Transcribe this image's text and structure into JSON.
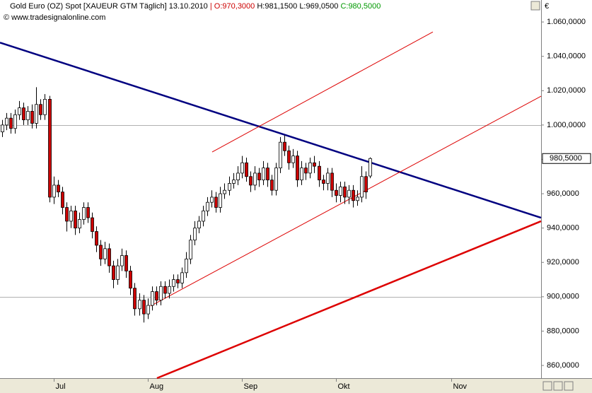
{
  "chart_data": {
    "type": "candlestick",
    "header": {
      "title": "Gold Euro (OZ) Spot [XAUEUR GTM  Täglich] 13.10.2010",
      "separator": "|",
      "open": "O:970,3000",
      "high": "H:981,1500",
      "low": "L:969,0500",
      "close": "C:980,5000"
    },
    "source": "© www.tradesignalonline.com",
    "currency": "€",
    "last_price_label": "980,5000",
    "up_color": "#ffffff",
    "down_color": "#cc0000",
    "open": [
      996,
      1000,
      1004,
      998,
      1006,
      1010,
      1003,
      1008,
      1001,
      1012,
      1006,
      1015,
      958,
      965,
      961,
      952,
      944,
      950,
      940,
      945,
      952,
      946,
      938,
      930,
      922,
      928,
      918,
      910,
      918,
      924,
      915,
      905,
      893,
      898,
      890,
      895,
      903,
      898,
      906,
      902,
      906,
      910,
      908,
      914,
      922,
      933,
      940,
      944,
      950,
      955,
      958,
      952,
      960,
      962,
      966,
      968,
      972,
      978,
      970,
      965,
      972,
      968,
      975,
      968,
      962,
      975,
      990,
      985,
      978,
      982,
      968,
      975,
      972,
      978,
      976,
      968,
      966,
      972,
      962,
      959,
      964,
      958,
      962,
      956,
      958,
      970,
      970.3
    ],
    "high": [
      1003,
      1007,
      1007,
      1009,
      1014,
      1013,
      1011,
      1012,
      1022,
      1015,
      1018,
      1017,
      970,
      968,
      964,
      955,
      953,
      953,
      949,
      955,
      955,
      949,
      941,
      933,
      932,
      931,
      921,
      922,
      928,
      927,
      918,
      908,
      902,
      901,
      899,
      906,
      906,
      909,
      909,
      910,
      913,
      913,
      917,
      926,
      936,
      944,
      947,
      953,
      958,
      962,
      961,
      964,
      966,
      970,
      972,
      976,
      982,
      981,
      973,
      976,
      975,
      979,
      978,
      971,
      978,
      993,
      994,
      988,
      986,
      985,
      979,
      978,
      981,
      982,
      979,
      971,
      975,
      975,
      966,
      967,
      967,
      965,
      965,
      962,
      976,
      973,
      981.15
    ],
    "low": [
      993,
      997,
      995,
      995,
      1003,
      1000,
      1000,
      998,
      998,
      1003,
      1003,
      955,
      954,
      958,
      948,
      938,
      940,
      936,
      937,
      942,
      943,
      934,
      926,
      918,
      919,
      914,
      905,
      907,
      915,
      911,
      901,
      889,
      889,
      885,
      887,
      892,
      895,
      895,
      899,
      899,
      903,
      905,
      905,
      911,
      919,
      930,
      937,
      941,
      947,
      952,
      949,
      949,
      957,
      959,
      963,
      965,
      969,
      967,
      961,
      962,
      964,
      965,
      964,
      959,
      959,
      972,
      982,
      974,
      975,
      964,
      965,
      968,
      969,
      972,
      964,
      962,
      962,
      958,
      955,
      955,
      954,
      954,
      952,
      953,
      955,
      957,
      969.05
    ],
    "close": [
      1000,
      1004,
      998,
      1006,
      1010,
      1003,
      1008,
      1001,
      1012,
      1006,
      1015,
      958,
      965,
      961,
      952,
      944,
      950,
      940,
      945,
      952,
      946,
      938,
      930,
      922,
      928,
      918,
      910,
      918,
      924,
      915,
      905,
      893,
      898,
      890,
      895,
      903,
      898,
      906,
      902,
      906,
      910,
      908,
      914,
      922,
      933,
      940,
      944,
      950,
      955,
      958,
      952,
      960,
      962,
      966,
      968,
      972,
      978,
      970,
      965,
      972,
      968,
      975,
      968,
      962,
      975,
      990,
      985,
      978,
      982,
      968,
      975,
      972,
      978,
      976,
      968,
      966,
      972,
      962,
      959,
      964,
      958,
      962,
      956,
      958,
      970,
      961,
      980.5
    ],
    "xlim": [
      -0.5,
      126
    ],
    "xticks": [
      {
        "value": 12,
        "label": "Jul"
      },
      {
        "value": 34,
        "label": "Aug"
      },
      {
        "value": 56,
        "label": "Sep"
      },
      {
        "value": 78,
        "label": "Okt"
      },
      {
        "value": 105,
        "label": "Nov"
      }
    ],
    "ylim": [
      852.6,
      1072.8
    ],
    "yticks": [
      {
        "value": 860,
        "label": "860,0000"
      },
      {
        "value": 880,
        "label": "880,0000"
      },
      {
        "value": 900,
        "label": "900,0000"
      },
      {
        "value": 920,
        "label": "920,0000"
      },
      {
        "value": 940,
        "label": "940,0000"
      },
      {
        "value": 960,
        "label": "960,0000"
      },
      {
        "value": 980,
        "label": "980,0000"
      },
      {
        "value": 1000,
        "label": "1.000,0000"
      },
      {
        "value": 1020,
        "label": "1.020,0000"
      },
      {
        "value": 1040,
        "label": "1.040,0000"
      },
      {
        "value": 1060,
        "label": "1.060,0000"
      }
    ],
    "grid_lines": [
      900,
      1000
    ],
    "trendlines": [
      {
        "color": "#000080",
        "width": 2.5,
        "start": [
          -0.5,
          1048
        ],
        "end": [
          126,
          946
        ]
      },
      {
        "color": "#dd0000",
        "width": 2.5,
        "start": [
          36.2,
          852.6
        ],
        "end": [
          126,
          944
        ]
      },
      {
        "color": "#dd0000",
        "width": 1,
        "start": [
          34.7,
          894.6
        ],
        "end": [
          126,
          1016.8
        ]
      },
      {
        "color": "#dd0000",
        "width": 1,
        "start": [
          49.1,
          984.3
        ],
        "end": [
          100.7,
          1054.2
        ]
      }
    ]
  }
}
